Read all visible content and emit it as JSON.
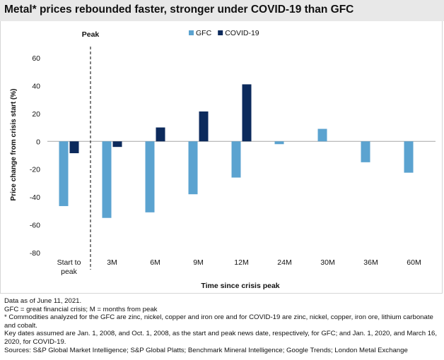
{
  "title": "Metal* prices rebounded faster, stronger under COVID-19 than GFC",
  "chart_data": {
    "type": "bar",
    "title": "Metal* prices rebounded faster, stronger under COVID-19 than GFC",
    "xlabel": "Time since crisis peak",
    "ylabel": "Price change from crisis start (%)",
    "ylim": [
      -80,
      60
    ],
    "yticks": [
      "60",
      "40",
      "20",
      "0",
      "-20",
      "-40",
      "-60",
      "-80"
    ],
    "ytick_values": [
      60,
      40,
      20,
      0,
      -20,
      -40,
      -60,
      -80
    ],
    "categories": [
      "Start to peak",
      "3M",
      "6M",
      "9M",
      "12M",
      "24M",
      "30M",
      "36M",
      "60M"
    ],
    "category_lines": [
      [
        "Start to",
        "peak"
      ],
      [
        "3M"
      ],
      [
        "6M"
      ],
      [
        "9M"
      ],
      [
        "12M"
      ],
      [
        "24M"
      ],
      [
        "30M"
      ],
      [
        "36M"
      ],
      [
        "60M"
      ]
    ],
    "annotation": "Peak",
    "legend_position": "top",
    "series": [
      {
        "name": "GFC",
        "color": "#5ba3d0",
        "values": [
          -46.5,
          -55,
          -51,
          -38,
          -26,
          -2,
          9,
          -15,
          -22.5
        ]
      },
      {
        "name": "COVID-19",
        "color": "#0c2a5c",
        "values": [
          -8.5,
          -4,
          10,
          21.5,
          41,
          null,
          null,
          null,
          null
        ]
      }
    ]
  },
  "notes": [
    "Data as of June 11, 2021.",
    "GFC = great financial crisis; M =  months from peak",
    "* Commodities analyzed for the GFC are zinc, nickel, copper and iron ore and for COVID-19 are zinc, nickel, copper, iron ore, lithium carbonate and cobalt.",
    "Key dates assumed are Jan. 1, 2008, and Oct. 1, 2008, as the start and peak news date, respectively, for GFC; and Jan. 1, 2020, and March 16, 2020, for COVID-19.",
    "Sources: S&P Global Market Intelligence; S&P Global Platts; Benchmark Mineral Intelligence; Google Trends; London Metal Exchange"
  ]
}
